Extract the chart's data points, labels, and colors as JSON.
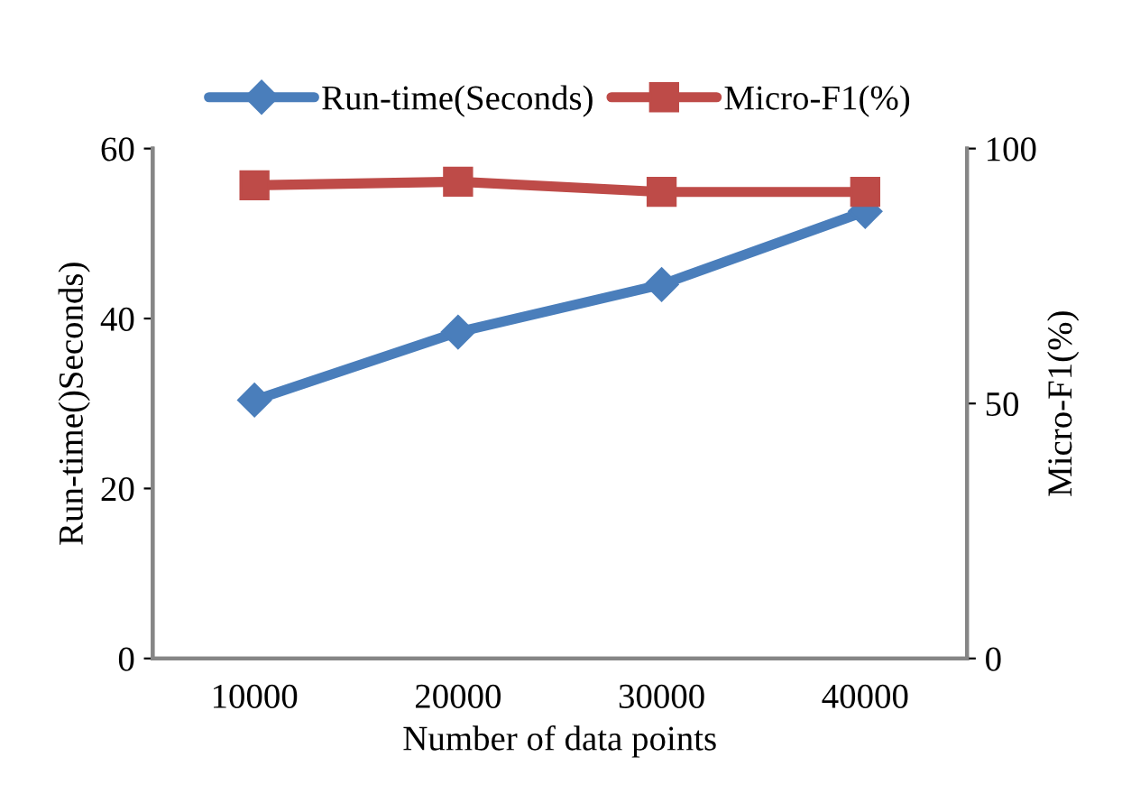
{
  "chart_data": {
    "type": "line",
    "xlabel": "Number of data points",
    "ylabel": "Run-time()Seconds)",
    "y2label": "Micro-F1(%)",
    "categories": [
      "10000",
      "20000",
      "30000",
      "40000"
    ],
    "series": [
      {
        "name": "Run-time(Seconds)",
        "color": "#4a7ebb",
        "marker": "diamond",
        "values": [
          30.4,
          38.4,
          44.0,
          52.6
        ]
      },
      {
        "name": "Micro-F1(%)",
        "color": "#be4b48",
        "marker": "square",
        "axis": "y2",
        "values": [
          92.8,
          93.5,
          91.5,
          91.5
        ]
      }
    ],
    "ylim": [
      0,
      60
    ],
    "yticks": [
      0,
      20,
      40,
      60
    ],
    "y2lim": [
      0,
      100
    ],
    "y2ticks": [
      0,
      50,
      100
    ],
    "grid": false,
    "legend": "top"
  }
}
